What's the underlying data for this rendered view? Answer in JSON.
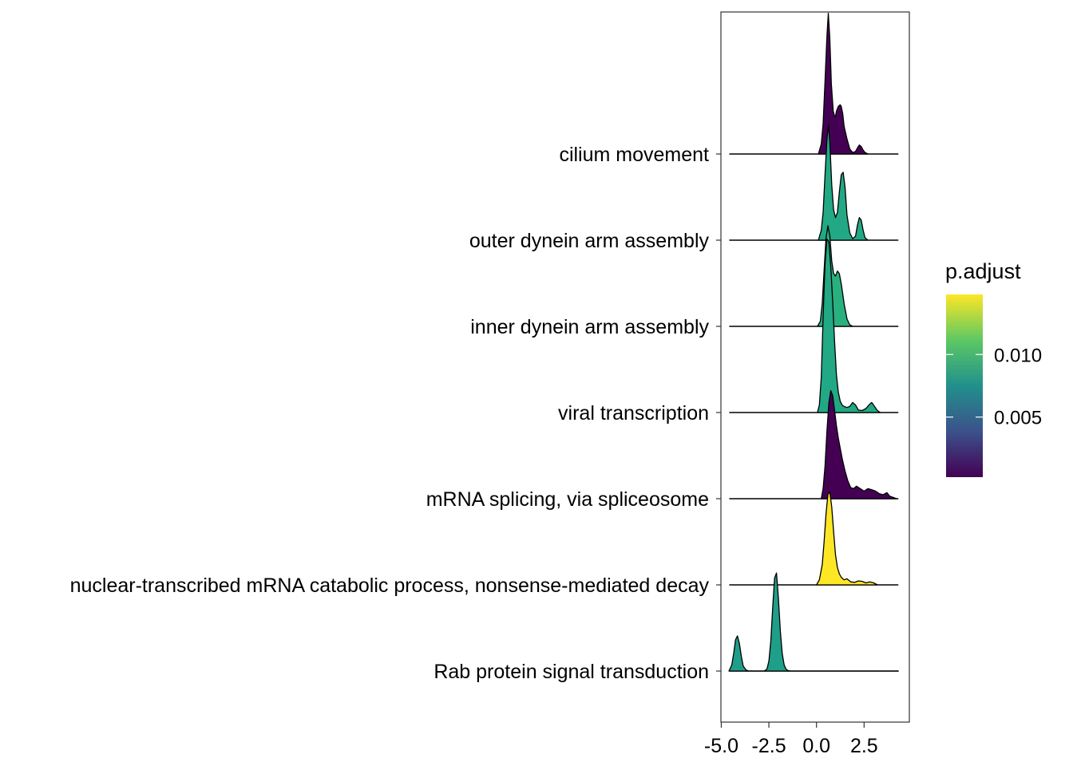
{
  "chart_data": {
    "type": "ridgeline",
    "xlim": [
      -5.0,
      4.3
    ],
    "x_ticks": [
      "-5.0",
      "-2.5",
      "0.0",
      "2.5"
    ],
    "x_tick_values": [
      -5.0,
      -2.5,
      0.0,
      2.5
    ],
    "grid": false,
    "categories": [
      "cilium movement",
      "outer dynein arm assembly",
      "inner dynein arm assembly",
      "viral transcription",
      "mRNA splicing, via spliceosome",
      "nuclear-transcribed mRNA catabolic process, nonsense-mediated decay",
      "Rab protein signal transduction"
    ],
    "series": [
      {
        "category": "cilium movement",
        "p_adjust": 0.0003,
        "color": "#440154",
        "density": {
          "x": [
            0.1,
            0.25,
            0.35,
            0.45,
            0.55,
            0.62,
            0.7,
            0.78,
            0.88,
            0.95,
            1.0,
            1.05,
            1.15,
            1.25,
            1.3,
            1.38,
            1.45,
            1.6,
            1.75,
            1.9,
            2.05,
            2.15,
            2.25,
            2.35,
            2.45,
            2.55,
            2.7
          ],
          "y": [
            0.0,
            0.2,
            0.6,
            1.45,
            2.35,
            2.8,
            2.3,
            1.4,
            0.85,
            0.75,
            0.75,
            0.85,
            0.95,
            0.98,
            0.95,
            0.8,
            0.55,
            0.3,
            0.1,
            0.03,
            0.05,
            0.12,
            0.18,
            0.15,
            0.08,
            0.03,
            0.0
          ]
        }
      },
      {
        "category": "outer dynein arm assembly",
        "p_adjust": 0.0106,
        "color": "#22A884",
        "density": {
          "x": [
            0.1,
            0.25,
            0.35,
            0.45,
            0.55,
            0.63,
            0.7,
            0.8,
            0.9,
            1.0,
            1.1,
            1.2,
            1.3,
            1.4,
            1.5,
            1.6,
            1.75,
            1.9,
            2.05,
            2.15,
            2.25,
            2.35,
            2.45,
            2.55,
            2.7
          ],
          "y": [
            0.0,
            0.2,
            0.55,
            1.3,
            2.0,
            2.3,
            1.95,
            1.1,
            0.6,
            0.45,
            0.55,
            0.95,
            1.3,
            1.35,
            1.05,
            0.5,
            0.15,
            0.03,
            0.08,
            0.3,
            0.45,
            0.4,
            0.2,
            0.05,
            0.0
          ]
        }
      },
      {
        "category": "inner dynein arm assembly",
        "p_adjust": 0.0112,
        "color": "#2AB07F",
        "density": {
          "x": [
            0.05,
            0.2,
            0.3,
            0.4,
            0.5,
            0.6,
            0.7,
            0.8,
            0.9,
            1.0,
            1.1,
            1.2,
            1.3,
            1.45,
            1.6,
            1.75,
            1.9
          ],
          "y": [
            0.0,
            0.1,
            0.45,
            1.1,
            1.75,
            2.0,
            1.8,
            1.3,
            1.05,
            1.0,
            1.1,
            1.05,
            0.85,
            0.45,
            0.15,
            0.03,
            0.0
          ]
        }
      },
      {
        "category": "viral transcription",
        "p_adjust": 0.0106,
        "color": "#22A884",
        "density": {
          "x": [
            0.05,
            0.15,
            0.25,
            0.35,
            0.45,
            0.55,
            0.65,
            0.75,
            0.85,
            0.95,
            1.05,
            1.15,
            1.25,
            1.35,
            1.45,
            1.6,
            1.75,
            1.9,
            2.05,
            2.2,
            2.4,
            2.6,
            2.75,
            2.9,
            3.05,
            3.2,
            3.35
          ],
          "y": [
            0.0,
            0.15,
            0.7,
            1.9,
            2.95,
            3.45,
            3.4,
            2.9,
            2.2,
            1.4,
            0.75,
            0.4,
            0.22,
            0.15,
            0.12,
            0.1,
            0.12,
            0.2,
            0.15,
            0.05,
            0.04,
            0.08,
            0.15,
            0.2,
            0.12,
            0.04,
            0.0
          ]
        }
      },
      {
        "category": "mRNA splicing, via spliceosome",
        "p_adjust": 0.0002,
        "color": "#440154",
        "density": {
          "x": [
            0.25,
            0.35,
            0.45,
            0.55,
            0.65,
            0.75,
            0.85,
            0.95,
            1.05,
            1.15,
            1.25,
            1.35,
            1.5,
            1.65,
            1.8,
            1.95,
            2.1,
            2.3,
            2.5,
            2.7,
            2.9,
            3.1,
            3.3,
            3.5,
            3.7,
            3.85,
            4.0,
            4.2
          ],
          "y": [
            0.0,
            0.2,
            0.65,
            1.35,
            1.9,
            2.15,
            2.05,
            1.75,
            1.45,
            1.2,
            1.0,
            0.8,
            0.55,
            0.35,
            0.22,
            0.2,
            0.25,
            0.2,
            0.15,
            0.2,
            0.18,
            0.15,
            0.1,
            0.08,
            0.12,
            0.05,
            0.03,
            0.0
          ]
        }
      },
      {
        "category": "nuclear-transcribed mRNA catabolic process, nonsense-mediated decay",
        "p_adjust": 0.0148,
        "color": "#FDE725",
        "density": {
          "x": [
            0.0,
            0.15,
            0.3,
            0.4,
            0.5,
            0.6,
            0.7,
            0.8,
            0.9,
            1.0,
            1.1,
            1.2,
            1.3,
            1.45,
            1.6,
            1.8,
            2.0,
            2.2,
            2.4,
            2.6,
            2.8,
            3.0,
            3.2
          ],
          "y": [
            0.0,
            0.1,
            0.4,
            0.85,
            1.4,
            1.8,
            1.85,
            1.55,
            1.05,
            0.6,
            0.35,
            0.22,
            0.15,
            0.1,
            0.12,
            0.06,
            0.05,
            0.08,
            0.07,
            0.04,
            0.06,
            0.04,
            0.0
          ]
        }
      },
      {
        "category": "Rab protein signal transduction",
        "p_adjust": 0.0096,
        "color": "#1F9E89",
        "density": {
          "x": [
            -4.6,
            -4.45,
            -4.35,
            -4.25,
            -4.15,
            -4.05,
            -3.95,
            -3.85,
            -3.7,
            -3.55,
            -3.3,
            -3.05,
            -2.75,
            -2.6,
            -2.5,
            -2.4,
            -2.3,
            -2.2,
            -2.1,
            -2.0,
            -1.9,
            -1.8,
            -1.7,
            -1.6,
            -1.5,
            -1.35,
            -1.0,
            -0.5,
            0.0,
            0.5,
            1.0,
            1.5,
            2.0,
            2.5,
            3.0,
            3.5,
            4.0,
            4.3
          ],
          "y": [
            0.0,
            0.12,
            0.35,
            0.62,
            0.7,
            0.55,
            0.3,
            0.1,
            0.02,
            0.0,
            0.0,
            0.0,
            0.0,
            0.04,
            0.2,
            0.6,
            1.25,
            1.85,
            1.95,
            1.45,
            0.8,
            0.35,
            0.12,
            0.04,
            0.01,
            0.0,
            0.0,
            0.0,
            0.0,
            0.0,
            0.0,
            0.0,
            0.0,
            0.0,
            0.0,
            0.0,
            0.0,
            0.0
          ]
        }
      }
    ],
    "legend": {
      "title": "p.adjust",
      "placement": "right",
      "ticks": [
        "0.005",
        "0.010"
      ],
      "tick_values": [
        0.005,
        0.01
      ],
      "range": [
        0.0002,
        0.0148
      ],
      "colors": [
        "#440154",
        "#3B528B",
        "#21908C",
        "#5DC863",
        "#FDE725"
      ]
    }
  }
}
